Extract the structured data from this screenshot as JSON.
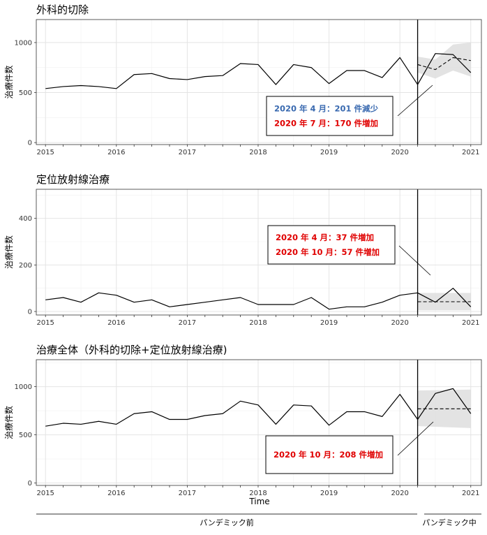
{
  "chart_data": [
    {
      "type": "line",
      "title": "外科的切除",
      "ylabel": "治療件数",
      "ylim": [
        -20,
        1230
      ],
      "yticks": [
        0,
        500,
        1000
      ],
      "xlim": [
        2014.87,
        2021.15
      ],
      "xticks": [
        2015,
        2016,
        2017,
        2018,
        2019,
        2020,
        2021
      ],
      "pandemic_start": 2020.25,
      "grid": true,
      "series": [
        {
          "kind": "observed",
          "x": [
            2015,
            2015.25,
            2015.5,
            2015.75,
            2016,
            2016.25,
            2016.5,
            2016.75,
            2017,
            2017.25,
            2017.5,
            2017.75,
            2018,
            2018.25,
            2018.5,
            2018.75,
            2019,
            2019.25,
            2019.5,
            2019.75,
            2020,
            2020.25,
            2020.5,
            2020.75,
            2021
          ],
          "y": [
            540,
            560,
            570,
            560,
            540,
            680,
            690,
            640,
            630,
            660,
            670,
            790,
            780,
            580,
            780,
            750,
            590,
            720,
            720,
            650,
            850,
            580,
            890,
            880,
            700
          ]
        },
        {
          "kind": "counterfactual",
          "x": [
            2020.25,
            2020.5,
            2020.75,
            2021
          ],
          "y": [
            780,
            730,
            850,
            820
          ]
        }
      ],
      "ribbon": {
        "x": [
          2020.25,
          2020.5,
          2020.75,
          2021
        ],
        "lower": [
          700,
          640,
          720,
          660
        ],
        "upper": [
          860,
          830,
          980,
          1000
        ]
      },
      "annotation": [
        {
          "text": "2020 年 4 月：201 件減少",
          "color": "#3a6ab0"
        },
        {
          "text": "2020 年 7 月：170 件増加",
          "color": "#e00000"
        }
      ]
    },
    {
      "type": "line",
      "title": "定位放射線治療",
      "ylabel": "治療件数",
      "ylim": [
        -15,
        525
      ],
      "yticks": [
        0,
        200,
        400
      ],
      "xlim": [
        2014.87,
        2021.15
      ],
      "xticks": [
        2015,
        2016,
        2017,
        2018,
        2019,
        2020,
        2021
      ],
      "pandemic_start": 2020.25,
      "grid": true,
      "series": [
        {
          "kind": "observed",
          "x": [
            2015,
            2015.25,
            2015.5,
            2015.75,
            2016,
            2016.25,
            2016.5,
            2016.75,
            2017,
            2017.25,
            2017.5,
            2017.75,
            2018,
            2018.25,
            2018.5,
            2018.75,
            2019,
            2019.25,
            2019.5,
            2019.75,
            2020,
            2020.25,
            2020.5,
            2020.75,
            2021
          ],
          "y": [
            50,
            60,
            40,
            80,
            70,
            40,
            50,
            20,
            30,
            40,
            50,
            60,
            30,
            30,
            30,
            60,
            10,
            20,
            20,
            40,
            70,
            80,
            40,
            100,
            20
          ]
        },
        {
          "kind": "counterfactual",
          "x": [
            2020.25,
            2021
          ],
          "y": [
            42,
            42
          ]
        }
      ],
      "ribbon": {
        "x": [
          2020.25,
          2021
        ],
        "lower": [
          5,
          5
        ],
        "upper": [
          80,
          80
        ]
      },
      "annotation": [
        {
          "text": "2020 年 4 月：37 件増加",
          "color": "#e00000"
        },
        {
          "text": "2020 年 10 月：57 件増加",
          "color": "#e00000"
        }
      ]
    },
    {
      "type": "line",
      "title": "治療全体（外科的切除+定位放射線治療)",
      "ylabel": "治療件数",
      "ylim": [
        -25,
        1280
      ],
      "yticks": [
        0,
        500,
        1000
      ],
      "xlim": [
        2014.87,
        2021.15
      ],
      "xticks": [
        2015,
        2016,
        2017,
        2018,
        2019,
        2020,
        2021
      ],
      "xlabel": "Time",
      "pandemic_start": 2020.25,
      "grid": true,
      "series": [
        {
          "kind": "observed",
          "x": [
            2015,
            2015.25,
            2015.5,
            2015.75,
            2016,
            2016.25,
            2016.5,
            2016.75,
            2017,
            2017.25,
            2017.5,
            2017.75,
            2018,
            2018.25,
            2018.5,
            2018.75,
            2019,
            2019.25,
            2019.5,
            2019.75,
            2020,
            2020.25,
            2020.5,
            2020.75,
            2021
          ],
          "y": [
            590,
            620,
            610,
            640,
            610,
            720,
            740,
            660,
            660,
            700,
            720,
            850,
            810,
            610,
            810,
            800,
            600,
            740,
            740,
            690,
            920,
            660,
            930,
            980,
            720
          ]
        },
        {
          "kind": "counterfactual",
          "x": [
            2020.25,
            2021
          ],
          "y": [
            770,
            770
          ]
        }
      ],
      "ribbon": {
        "x": [
          2020.25,
          2021
        ],
        "lower": [
          590,
          570
        ],
        "upper": [
          960,
          970
        ]
      },
      "annotation": [
        {
          "text": "2020 年 10 月：208 件増加",
          "color": "#e00000"
        }
      ]
    }
  ],
  "periods": {
    "before": "パンデミック前",
    "during": "パンデミック中"
  }
}
